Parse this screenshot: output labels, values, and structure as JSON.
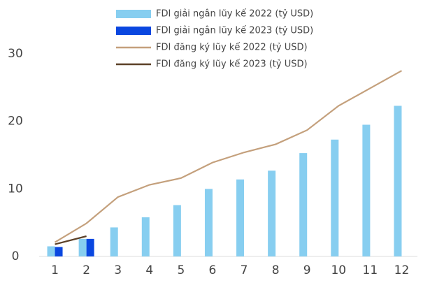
{
  "chart_data": {
    "type": "bar",
    "categories": [
      "1",
      "2",
      "3",
      "4",
      "5",
      "6",
      "7",
      "8",
      "9",
      "10",
      "11",
      "12"
    ],
    "series": [
      {
        "name": "FDI giải ngân lũy kế 2022 (tỷ USD)",
        "type": "bar",
        "color": "#87cef0",
        "values": [
          1.5,
          2.6,
          4.3,
          5.8,
          7.6,
          10.0,
          11.4,
          12.7,
          15.3,
          17.3,
          19.5,
          22.3
        ]
      },
      {
        "name": "FDI giải ngân lũy kế 2023 (tỷ USD)",
        "type": "bar",
        "color": "#0a47e0",
        "values": [
          1.4,
          2.6,
          null,
          null,
          null,
          null,
          null,
          null,
          null,
          null,
          null,
          null
        ]
      },
      {
        "name": "FDI đăng ký lũy kế 2022 (tỷ USD)",
        "type": "line",
        "color": "#c4a07c",
        "values": [
          2.1,
          4.9,
          8.8,
          10.6,
          11.6,
          13.9,
          15.4,
          16.6,
          18.7,
          22.3,
          24.9,
          27.5
        ]
      },
      {
        "name": "FDI đăng ký lũy kế 2023 (tỷ USD)",
        "type": "line",
        "color": "#5c4128",
        "values": [
          1.8,
          3.0,
          null,
          null,
          null,
          null,
          null,
          null,
          null,
          null,
          null,
          null
        ]
      }
    ],
    "ylim": [
      0,
      30
    ],
    "yticks": [
      0,
      10,
      20,
      30
    ],
    "grid": false
  }
}
